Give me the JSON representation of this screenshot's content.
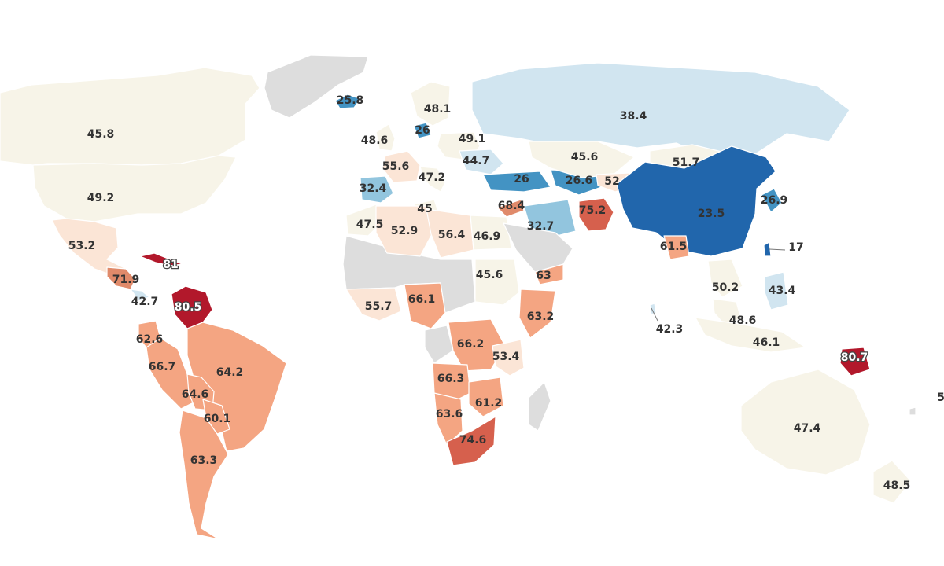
{
  "palette": {
    "nodata": "#dddddd",
    "s1": "#2166ac",
    "s2": "#4393c3",
    "s3": "#92c5de",
    "s4": "#d1e5f0",
    "n1": "#f7f4e8",
    "w1": "#fbe5d6",
    "w2": "#f4a582",
    "w3": "#e08a6a",
    "w4": "#d6604d",
    "w5": "#b2182b"
  },
  "chart_data": {
    "type": "choropleth",
    "grid": false,
    "legend": "none",
    "regions": [
      {
        "name": "Greenland",
        "value": null
      },
      {
        "name": "Iceland",
        "value": 25.8
      },
      {
        "name": "Canada",
        "value": 45.8
      },
      {
        "name": "United States",
        "value": 49.2
      },
      {
        "name": "Mexico",
        "value": 53.2
      },
      {
        "name": "Cuba",
        "value": 81
      },
      {
        "name": "Nicaragua",
        "value": 71.9
      },
      {
        "name": "Costa Rica",
        "value": 42.7
      },
      {
        "name": "Venezuela",
        "value": 80.5
      },
      {
        "name": "Ecuador",
        "value": 62.6
      },
      {
        "name": "Peru",
        "value": 66.7
      },
      {
        "name": "Brazil",
        "value": 64.2
      },
      {
        "name": "Bolivia",
        "value": 64.6
      },
      {
        "name": "Paraguay",
        "value": 60.1
      },
      {
        "name": "Argentina",
        "value": 63.3
      },
      {
        "name": "Sweden",
        "value": 48.1
      },
      {
        "name": "United Kingdom",
        "value": 48.6
      },
      {
        "name": "Denmark",
        "value": 26
      },
      {
        "name": "Poland",
        "value": 49.1
      },
      {
        "name": "France",
        "value": 55.6
      },
      {
        "name": "Ukraine",
        "value": 44.7
      },
      {
        "name": "Italy",
        "value": 47.2
      },
      {
        "name": "Spain",
        "value": 32.4
      },
      {
        "name": "Turkey",
        "value": 26
      },
      {
        "name": "Georgia",
        "value": 26.6
      },
      {
        "name": "Tunisia",
        "value": 45
      },
      {
        "name": "Morocco",
        "value": 47.5
      },
      {
        "name": "Algeria",
        "value": 52.9
      },
      {
        "name": "Libya",
        "value": 56.4
      },
      {
        "name": "Egypt",
        "value": 46.9
      },
      {
        "name": "Lebanon",
        "value": 68.4
      },
      {
        "name": "Iran",
        "value": 32.7
      },
      {
        "name": "Russia",
        "value": 38.4
      },
      {
        "name": "Kazakhstan",
        "value": 45.6
      },
      {
        "name": "Mongolia",
        "value": 51.7
      },
      {
        "name": "Kyrgyzstan",
        "value": 52
      },
      {
        "name": "Afghanistan",
        "value": 75.2
      },
      {
        "name": "China",
        "value": 23.5
      },
      {
        "name": "South Korea",
        "value": 26.9
      },
      {
        "name": "Taiwan",
        "value": 17
      },
      {
        "name": "Bangladesh",
        "value": 61.5
      },
      {
        "name": "Yemen",
        "value": 63
      },
      {
        "name": "Saudi Arabia",
        "value": null
      },
      {
        "name": "Sudan",
        "value": 45.6
      },
      {
        "name": "Ghana",
        "value": 55.7
      },
      {
        "name": "Nigeria",
        "value": 66.1
      },
      {
        "name": "Kenya",
        "value": 63.2
      },
      {
        "name": "DR Congo",
        "value": 66.2
      },
      {
        "name": "Tanzania",
        "value": 53.4
      },
      {
        "name": "Angola",
        "value": 66.3
      },
      {
        "name": "Zimbabwe",
        "value": 61.2
      },
      {
        "name": "Namibia",
        "value": 63.6
      },
      {
        "name": "South Africa",
        "value": 74.6
      },
      {
        "name": "Vietnam",
        "value": 50.2
      },
      {
        "name": "Philippines",
        "value": 43.4
      },
      {
        "name": "Sri Lanka",
        "value": 42.3
      },
      {
        "name": "Malaysia",
        "value": 48.6
      },
      {
        "name": "Indonesia",
        "value": 46.1
      },
      {
        "name": "Papua New Guinea",
        "value": 80.7
      },
      {
        "name": "Australia",
        "value": 47.4
      },
      {
        "name": "New Zealand",
        "value": 48.5
      },
      {
        "name": "Fiji",
        "value": null,
        "label": "5"
      }
    ]
  }
}
